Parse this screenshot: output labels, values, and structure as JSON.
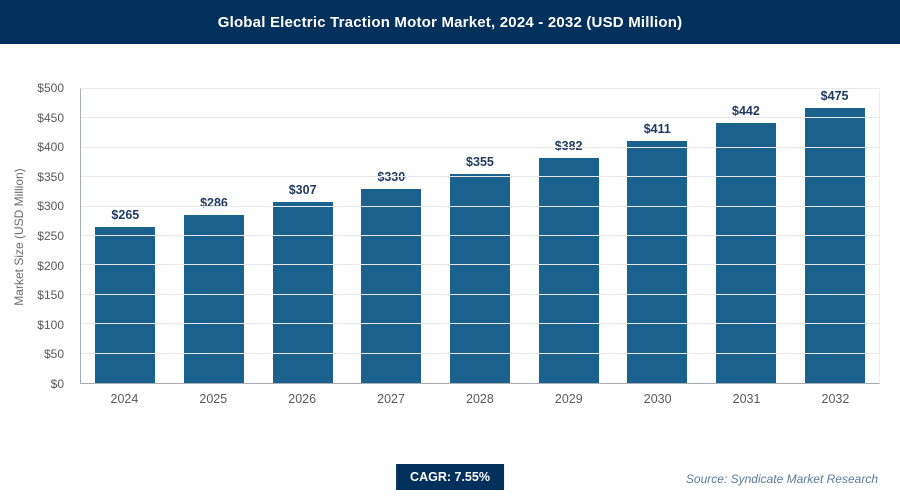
{
  "header": {
    "title": "Global Electric Traction Motor Market, 2024 - 2032 (USD Million)"
  },
  "chart_data": {
    "type": "bar",
    "title": "Global Electric Traction Motor Market, 2024 - 2032 (USD Million)",
    "categories": [
      "2024",
      "2025",
      "2026",
      "2027",
      "2028",
      "2029",
      "2030",
      "2031",
      "2032"
    ],
    "values": [
      265,
      286,
      307,
      330,
      355,
      382,
      411,
      442,
      475
    ],
    "value_labels": [
      "$265",
      "$286",
      "$307",
      "$330",
      "$355",
      "$382",
      "$411",
      "$442",
      "$475"
    ],
    "xlabel": "",
    "ylabel": "Market Size (USD Million)",
    "ylim": [
      0,
      500
    ],
    "ytick_step": 50,
    "ytick_labels": [
      "$0",
      "$50",
      "$100",
      "$150",
      "$200",
      "$250",
      "$300",
      "$350",
      "$400",
      "$450",
      "$500"
    ],
    "grid": true,
    "legend": false,
    "bar_color": "#1a618e"
  },
  "footer": {
    "cagr_label": "CAGR: 7.55%",
    "source": "Source: Syndicate Market Research"
  },
  "colors": {
    "header_bg": "#04305c",
    "badge_bg": "#04305c",
    "bar": "#1a618e",
    "gridline": "#e7e9eb"
  }
}
